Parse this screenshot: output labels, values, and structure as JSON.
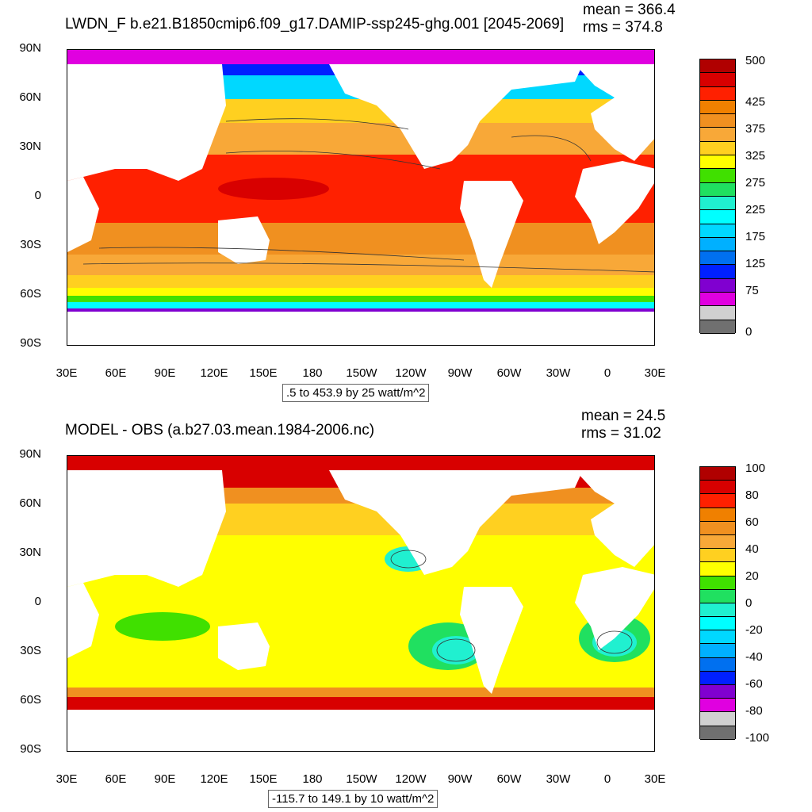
{
  "panels": [
    {
      "id": "top",
      "title": "LWDN_F b.e21.B1850cmip6.f09_g17.DAMIP-ssp245-ghg.001 [2045-2069]",
      "mean_label": "mean = 366.4",
      "rms_label": "rms = 374.8",
      "range_label": ".5 to 453.9 by 25 watt/m^2",
      "colorbar": {
        "colors": [
          "#b00000",
          "#d80000",
          "#ff2000",
          "#f08000",
          "#f09020",
          "#f8a838",
          "#ffd020",
          "#ffff00",
          "#40e000",
          "#20e060",
          "#20f0d0",
          "#00ffff",
          "#00d8ff",
          "#00b0ff",
          "#0070f0",
          "#0020ff",
          "#8000d0",
          "#e000e0",
          "#d0d0d0",
          "#707070"
        ],
        "labels": [
          "500",
          "425",
          "375",
          "325",
          "275",
          "225",
          "175",
          "125",
          "75",
          "0"
        ]
      }
    },
    {
      "id": "bottom",
      "title": "MODEL - OBS (a.b27.03.mean.1984-2006.nc)",
      "mean_label": "mean = 24.5",
      "rms_label": "rms = 31.02",
      "range_label": "-115.7 to 149.1 by 10 watt/m^2",
      "colorbar": {
        "colors": [
          "#b00000",
          "#d80000",
          "#ff2000",
          "#f08000",
          "#f09020",
          "#f8a838",
          "#ffd020",
          "#ffff00",
          "#40e000",
          "#20e060",
          "#20f0d0",
          "#00ffff",
          "#00d8ff",
          "#00b0ff",
          "#0070f0",
          "#0020ff",
          "#8000d0",
          "#e000e0",
          "#d0d0d0",
          "#707070"
        ],
        "labels": [
          "100",
          "80",
          "60",
          "40",
          "20",
          "0",
          "-20",
          "-40",
          "-60",
          "-80",
          "-100"
        ]
      }
    }
  ],
  "axes": {
    "lat_labels": [
      "90N",
      "60N",
      "30N",
      "0",
      "30S",
      "60S",
      "90S"
    ],
    "lon_labels": [
      "30E",
      "60E",
      "90E",
      "120E",
      "150E",
      "180",
      "150W",
      "120W",
      "90W",
      "60W",
      "30W",
      "0",
      "30E"
    ]
  },
  "colors": {
    "land": "#ffffff",
    "ocean_top_default": "#f8a838",
    "ocean_bottom_default": "#ffff00"
  }
}
